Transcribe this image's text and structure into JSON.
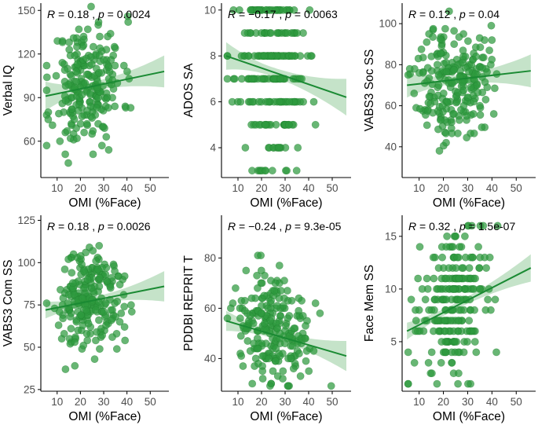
{
  "colors": {
    "point": "#2e9a3e",
    "line": "#1a8a33",
    "band": "#2e9a3e"
  },
  "chart_data": [
    {
      "type": "scatter",
      "id": "verbal-iq",
      "ylabel": "Verbal IQ",
      "xlabel": "OMI (%Face)",
      "stat": {
        "r_label": "R",
        "r": "= 0.18",
        "p_label": "p",
        "p": "= 0.0024"
      },
      "xlim": [
        3,
        58
      ],
      "ylim": [
        35,
        155
      ],
      "xticks": [
        10,
        20,
        30,
        40,
        50
      ],
      "yticks": [
        60,
        90,
        120,
        150
      ],
      "fit": {
        "x0": 5,
        "y0": 91,
        "x1": 56,
        "y1": 108,
        "band0": 10,
        "bandMid": 3,
        "band1": 11,
        "xmid": 24
      },
      "gen": {
        "n": 230,
        "mx": 23,
        "sx": 7.5,
        "my": 99,
        "sy": 21,
        "slope": 0.33,
        "seed": 11,
        "round": 1
      }
    },
    {
      "type": "scatter",
      "id": "ados-sa",
      "ylabel": "ADOS SA",
      "xlabel": "OMI (%Face)",
      "stat": {
        "r_label": "R",
        "r": "= −0.17",
        "p_label": "p",
        "p": "= 0.0063"
      },
      "xlim": [
        3,
        58
      ],
      "ylim": [
        2.7,
        10.3
      ],
      "xticks": [
        10,
        20,
        30,
        40,
        50
      ],
      "yticks": [
        4,
        6,
        8,
        10
      ],
      "fit": {
        "x0": 5,
        "y0": 8.0,
        "x1": 56,
        "y1": 6.2,
        "band0": 0.6,
        "bandMid": 0.2,
        "band1": 0.8,
        "xmid": 24
      },
      "gen": {
        "n": 230,
        "mx": 24,
        "sx": 7.5,
        "my": 7.2,
        "sy": 2.1,
        "slope": -0.035,
        "seed": 23,
        "round": 1,
        "ymin": 3,
        "ymax": 10
      }
    },
    {
      "type": "scatter",
      "id": "vabs3-soc",
      "ylabel": "VABS3 Soc SS",
      "xlabel": "OMI (%Face)",
      "stat": {
        "r_label": "R",
        "r": "= 0.12",
        "p_label": "p",
        "p": "= 0.04"
      },
      "xlim": [
        3,
        58
      ],
      "ylim": [
        25,
        110
      ],
      "xticks": [
        10,
        20,
        30,
        40,
        50
      ],
      "yticks": [
        40,
        60,
        80,
        100
      ],
      "fit": {
        "x0": 5,
        "y0": 70,
        "x1": 56,
        "y1": 77,
        "band0": 6,
        "bandMid": 2,
        "band1": 8,
        "xmid": 24
      },
      "gen": {
        "n": 230,
        "mx": 24,
        "sx": 7.5,
        "my": 72,
        "sy": 14,
        "slope": 0.14,
        "seed": 37,
        "round": 0.5
      }
    },
    {
      "type": "scatter",
      "id": "vabs3-com",
      "ylabel": "VABS3 Com SS",
      "xlabel": "OMI (%Face)",
      "stat": {
        "r_label": "R",
        "r": "= 0.18",
        "p_label": "p",
        "p": "= 0.0026"
      },
      "xlim": [
        3,
        58
      ],
      "ylim": [
        24,
        128
      ],
      "xticks": [
        10,
        20,
        30,
        40,
        50
      ],
      "yticks": [
        25,
        50,
        75,
        100,
        125
      ],
      "fit": {
        "x0": 5,
        "y0": 72,
        "x1": 56,
        "y1": 86,
        "band0": 5,
        "bandMid": 2,
        "band1": 9,
        "xmid": 24
      },
      "gen": {
        "n": 230,
        "mx": 24,
        "sx": 7.5,
        "my": 77,
        "sy": 15,
        "slope": 0.27,
        "seed": 51,
        "round": 1
      }
    },
    {
      "type": "scatter",
      "id": "pddbi",
      "ylabel": "PDDBI REPRIT T",
      "xlabel": "OMI (%Face)",
      "stat": {
        "r_label": "R",
        "r": "= −0.24",
        "p_label": "p",
        "p": "= 9.3e-05"
      },
      "xlim": [
        3,
        58
      ],
      "ylim": [
        27,
        97
      ],
      "xticks": [
        10,
        20,
        30,
        40,
        50
      ],
      "yticks": [
        40,
        60,
        80
      ],
      "fit": {
        "x0": 5,
        "y0": 55,
        "x1": 56,
        "y1": 41,
        "band0": 4,
        "bandMid": 1.5,
        "band1": 6,
        "xmid": 24
      },
      "gen": {
        "n": 230,
        "mx": 24,
        "sx": 7.5,
        "my": 50,
        "sy": 11,
        "slope": -0.27,
        "seed": 67,
        "round": 1
      }
    },
    {
      "type": "scatter",
      "id": "face-mem",
      "ylabel": "Face Mem SS",
      "xlabel": "OMI (%Face)",
      "stat": {
        "r_label": "R",
        "r": "= 0.32",
        "p_label": "p",
        "p": "= 1.5e-07"
      },
      "xlim": [
        3,
        58
      ],
      "ylim": [
        0.3,
        17
      ],
      "xticks": [
        10,
        20,
        30,
        40,
        50
      ],
      "yticks": [
        5,
        10,
        15
      ],
      "fit": {
        "x0": 5,
        "y0": 6,
        "x1": 56,
        "y1": 12,
        "band0": 0.8,
        "bandMid": 0.3,
        "band1": 1.3,
        "xmid": 24
      },
      "gen": {
        "n": 230,
        "mx": 24,
        "sx": 7.5,
        "my": 8.6,
        "sy": 3.5,
        "slope": 0.13,
        "seed": 83,
        "round": 1,
        "ymin": 1,
        "ymax": 16
      }
    }
  ]
}
